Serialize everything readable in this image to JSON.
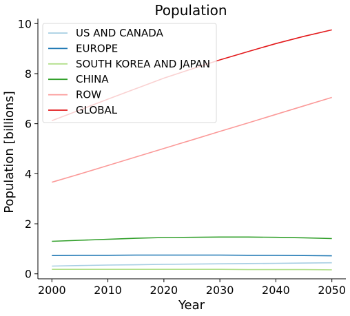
{
  "chart_data": {
    "type": "line",
    "title": "Population",
    "xlabel": "Year",
    "ylabel": "Population [billions]",
    "xlim": [
      1997.5,
      2052.5
    ],
    "ylim": [
      -0.2,
      10.2
    ],
    "xticks": [
      2000,
      2010,
      2020,
      2030,
      2040,
      2050
    ],
    "yticks": [
      0,
      2,
      4,
      6,
      8,
      10
    ],
    "grid": false,
    "legend_position": "upper-left",
    "x": [
      2000,
      2005,
      2010,
      2015,
      2020,
      2025,
      2030,
      2035,
      2040,
      2045,
      2050
    ],
    "series": [
      {
        "name": "US AND CANADA",
        "color": "#a6cee3",
        "values": [
          0.31,
          0.33,
          0.35,
          0.36,
          0.38,
          0.39,
          0.4,
          0.41,
          0.42,
          0.43,
          0.44
        ]
      },
      {
        "name": "EUROPE",
        "color": "#1f78b4",
        "values": [
          0.73,
          0.74,
          0.74,
          0.75,
          0.75,
          0.75,
          0.75,
          0.74,
          0.74,
          0.73,
          0.72
        ]
      },
      {
        "name": "SOUTH KOREA AND JAPAN",
        "color": "#b2df8a",
        "values": [
          0.18,
          0.18,
          0.18,
          0.18,
          0.18,
          0.18,
          0.18,
          0.17,
          0.17,
          0.17,
          0.16
        ]
      },
      {
        "name": "CHINA",
        "color": "#33a02c",
        "values": [
          1.3,
          1.34,
          1.38,
          1.42,
          1.45,
          1.46,
          1.47,
          1.47,
          1.46,
          1.44,
          1.41
        ]
      },
      {
        "name": "ROW",
        "color": "#fb9a99",
        "values": [
          3.66,
          3.99,
          4.33,
          4.67,
          5.01,
          5.35,
          5.69,
          6.03,
          6.37,
          6.71,
          7.05
        ]
      },
      {
        "name": "GLOBAL",
        "color": "#e31a1c",
        "values": [
          6.12,
          6.55,
          6.98,
          7.4,
          7.82,
          8.19,
          8.55,
          8.88,
          9.2,
          9.49,
          9.75
        ]
      }
    ]
  }
}
